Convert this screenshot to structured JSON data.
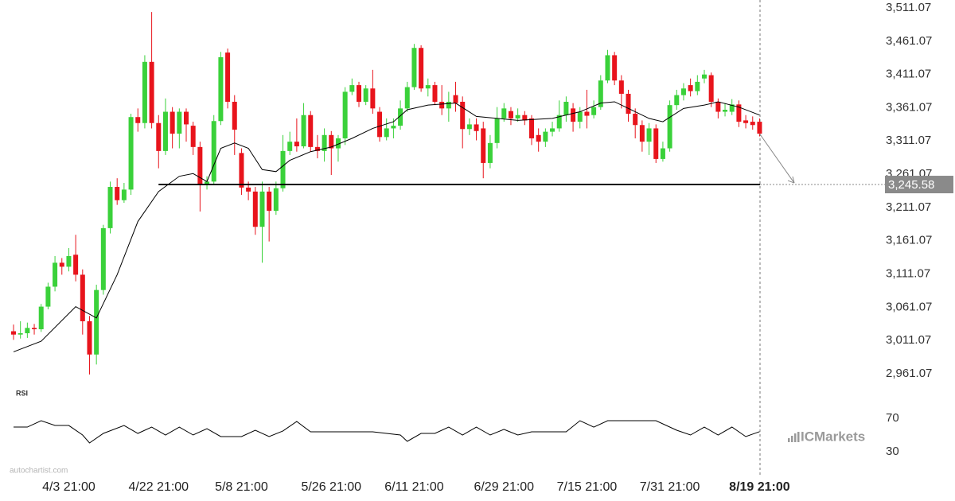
{
  "chart_data": [
    {
      "type": "candlestick",
      "categories": [
        null,
        null,
        null,
        null,
        null,
        null,
        null,
        null,
        "4/3 21:00",
        null,
        null,
        null,
        null,
        null,
        null,
        null,
        null,
        null,
        null,
        null,
        null,
        "4/22 21:00",
        null,
        null,
        null,
        null,
        null,
        null,
        null,
        null,
        null,
        null,
        null,
        "5/8 21:00",
        null,
        null,
        null,
        null,
        null,
        null,
        null,
        null,
        null,
        null,
        null,
        null,
        "5/26 21:00",
        null,
        null,
        null,
        null,
        null,
        null,
        null,
        null,
        null,
        null,
        null,
        "6/11 21:00",
        null,
        null,
        null,
        null,
        null,
        null,
        null,
        null,
        null,
        null,
        null,
        null,
        "6/29 21:00",
        null,
        null,
        null,
        null,
        null,
        null,
        null,
        null,
        null,
        null,
        null,
        "7/15 21:00",
        null,
        null,
        null,
        null,
        null,
        null,
        null,
        null,
        null,
        null,
        null,
        "7/31 21:00",
        null,
        null,
        null,
        null,
        null,
        null,
        null,
        null,
        null,
        null,
        null,
        null,
        "8/19 21:00"
      ],
      "open": [
        3025,
        3020,
        3022,
        3030,
        3028,
        3062,
        3092,
        3128,
        3122,
        3140,
        3110,
        3040,
        2990,
        3087,
        3180,
        3242,
        3222,
        3238,
        3347,
        3338,
        3430,
        3338,
        3296,
        3355,
        3322,
        3355,
        3334,
        3302,
        3245,
        3250,
        3341,
        3444,
        3370,
        3293,
        3241,
        3235,
        3182,
        3235,
        3206,
        3240,
        3296,
        3310,
        3303,
        3350,
        3302,
        3296,
        3320,
        3300,
        3315,
        3385,
        3395,
        3370,
        3390,
        3355,
        3317,
        3330,
        3334,
        3360,
        3392,
        3451,
        3390,
        3395,
        3370,
        3360,
        3380,
        3370,
        3329,
        3336,
        3330,
        3278,
        3308,
        3345,
        3356,
        3345,
        3350,
        3345,
        3320,
        3310,
        3325,
        3330,
        3350,
        3360,
        3340,
        3355,
        3350,
        3362,
        3402,
        3440,
        3402,
        3382,
        3352,
        3335,
        3310,
        3330,
        3284,
        3300,
        3365,
        3380,
        3395,
        3386,
        3405,
        3410,
        3370,
        3355,
        3355,
        3366,
        3342,
        3340,
        3340
      ],
      "high": [
        3035,
        3040,
        3038,
        3036,
        3066,
        3098,
        3138,
        3135,
        3150,
        3170,
        3118,
        3048,
        3095,
        3185,
        3250,
        3255,
        3248,
        3352,
        3360,
        3440,
        3505,
        3350,
        3375,
        3362,
        3360,
        3360,
        3340,
        3310,
        3258,
        3350,
        3445,
        3450,
        3380,
        3300,
        3250,
        3242,
        3250,
        3242,
        3250,
        3320,
        3325,
        3345,
        3368,
        3356,
        3320,
        3330,
        3326,
        3320,
        3392,
        3405,
        3400,
        3395,
        3418,
        3362,
        3345,
        3345,
        3372,
        3400,
        3457,
        3455,
        3405,
        3400,
        3395,
        3385,
        3400,
        3378,
        3345,
        3345,
        3340,
        3320,
        3362,
        3368,
        3362,
        3360,
        3356,
        3350,
        3330,
        3330,
        3340,
        3372,
        3378,
        3368,
        3362,
        3388,
        3372,
        3410,
        3448,
        3445,
        3410,
        3388,
        3360,
        3342,
        3338,
        3336,
        3310,
        3372,
        3388,
        3398,
        3405,
        3410,
        3418,
        3414,
        3375,
        3368,
        3374,
        3372,
        3350,
        3348,
        3345
      ],
      "low": [
        3012,
        3014,
        3015,
        3020,
        3024,
        3058,
        3085,
        3110,
        3115,
        3100,
        3020,
        2960,
        2975,
        3080,
        3172,
        3215,
        3218,
        3230,
        3325,
        3330,
        3330,
        3270,
        3290,
        3300,
        3300,
        3310,
        3290,
        3205,
        3238,
        3245,
        3335,
        3360,
        3290,
        3230,
        3222,
        3170,
        3128,
        3160,
        3200,
        3235,
        3290,
        3295,
        3300,
        3295,
        3285,
        3280,
        3260,
        3280,
        3305,
        3380,
        3362,
        3365,
        3352,
        3310,
        3312,
        3315,
        3328,
        3355,
        3388,
        3385,
        3378,
        3365,
        3350,
        3340,
        3355,
        3300,
        3320,
        3312,
        3255,
        3270,
        3300,
        3340,
        3335,
        3340,
        3335,
        3305,
        3295,
        3302,
        3318,
        3325,
        3340,
        3325,
        3330,
        3330,
        3345,
        3358,
        3398,
        3395,
        3360,
        3340,
        3315,
        3295,
        3290,
        3278,
        3280,
        3295,
        3358,
        3372,
        3378,
        3380,
        3398,
        3362,
        3345,
        3348,
        3350,
        3332,
        3330,
        3328,
        3318
      ],
      "close": [
        3020,
        3022,
        3030,
        3028,
        3062,
        3092,
        3128,
        3122,
        3138,
        3110,
        3040,
        2990,
        3087,
        3180,
        3242,
        3222,
        3238,
        3347,
        3338,
        3430,
        3338,
        3296,
        3355,
        3322,
        3355,
        3336,
        3302,
        3245,
        3250,
        3341,
        3437,
        3370,
        3328,
        3241,
        3235,
        3182,
        3235,
        3206,
        3240,
        3296,
        3310,
        3303,
        3350,
        3302,
        3296,
        3320,
        3300,
        3315,
        3385,
        3395,
        3370,
        3390,
        3360,
        3317,
        3330,
        3334,
        3360,
        3392,
        3451,
        3390,
        3395,
        3370,
        3360,
        3370,
        3368,
        3329,
        3336,
        3326,
        3278,
        3308,
        3345,
        3360,
        3345,
        3350,
        3342,
        3315,
        3310,
        3325,
        3330,
        3350,
        3370,
        3340,
        3355,
        3349,
        3362,
        3402,
        3440,
        3402,
        3382,
        3352,
        3335,
        3310,
        3330,
        3284,
        3300,
        3365,
        3380,
        3390,
        3386,
        3400,
        3411,
        3370,
        3355,
        3358,
        3366,
        3340,
        3338,
        3335,
        3322
      ],
      "up_color": "#3ad13a",
      "down_color": "#e8141c",
      "ma": {
        "x": [
          0,
          4,
          9,
          12,
          15,
          18,
          21,
          24,
          26,
          28,
          30,
          32,
          34,
          36,
          38,
          40,
          43,
          46,
          49,
          52,
          55,
          57,
          60,
          64,
          67,
          70,
          73,
          78,
          82,
          85,
          87,
          89,
          92,
          94,
          97,
          100,
          102,
          105,
          108
        ],
        "values": [
          2994,
          3010,
          3062,
          3045,
          3110,
          3190,
          3235,
          3258,
          3262,
          3250,
          3300,
          3308,
          3300,
          3268,
          3265,
          3282,
          3295,
          3302,
          3315,
          3330,
          3340,
          3358,
          3365,
          3368,
          3348,
          3345,
          3342,
          3345,
          3355,
          3368,
          3370,
          3360,
          3345,
          3340,
          3360,
          3365,
          3370,
          3362,
          3350
        ],
        "color": "#000000"
      },
      "level": {
        "value": 3245.58,
        "label": "3,245.58"
      },
      "ylim": [
        2961.07,
        3511.07
      ],
      "yticks": [
        {
          "value": 3511.07,
          "label": "3,511.07"
        },
        {
          "value": 3461.07,
          "label": "3,461.07"
        },
        {
          "value": 3411.07,
          "label": "3,411.07"
        },
        {
          "value": 3361.07,
          "label": "3,361.07"
        },
        {
          "value": 3311.07,
          "label": "3,311.07"
        },
        {
          "value": 3261.07,
          "label": "3,261.07"
        },
        {
          "value": 3211.07,
          "label": "3,211.07"
        },
        {
          "value": 3161.07,
          "label": "3,161.07"
        },
        {
          "value": 3111.07,
          "label": "3,111.07"
        },
        {
          "value": 3061.07,
          "label": "3,061.07"
        },
        {
          "value": 3011.07,
          "label": "3,011.07"
        },
        {
          "value": 2961.07,
          "label": "2,961.07"
        }
      ],
      "source": "autochartist.com",
      "brand": "ICMarkets"
    },
    {
      "type": "line",
      "title": "RSI",
      "x": [
        0,
        2,
        4,
        6,
        8,
        10,
        11,
        13,
        16,
        18,
        20,
        22,
        24,
        26,
        28,
        30,
        33,
        35,
        37,
        39,
        41,
        43,
        48,
        52,
        56,
        57,
        59,
        61,
        63,
        65,
        67,
        69,
        71,
        73,
        75,
        77,
        80,
        82,
        84,
        86,
        93,
        96,
        98,
        100,
        102,
        104,
        106,
        108
      ],
      "values": [
        59.5,
        59.5,
        67.1,
        61.4,
        61.4,
        50,
        40.5,
        51.9,
        61.4,
        51.9,
        59.5,
        50,
        59.5,
        50,
        57.6,
        48.1,
        48.1,
        55.7,
        48.1,
        54.8,
        66.2,
        53.8,
        53.8,
        53.8,
        50,
        42.4,
        51.9,
        51.9,
        59.5,
        50,
        59.5,
        50,
        56.7,
        50,
        53.8,
        53.8,
        53.8,
        67.1,
        59.5,
        67.1,
        67.1,
        55.7,
        50,
        59.5,
        50,
        59.5,
        48.1,
        54
      ],
      "color": "#000000",
      "ylim": [
        0,
        100
      ],
      "yticks": [
        70,
        30
      ]
    }
  ]
}
